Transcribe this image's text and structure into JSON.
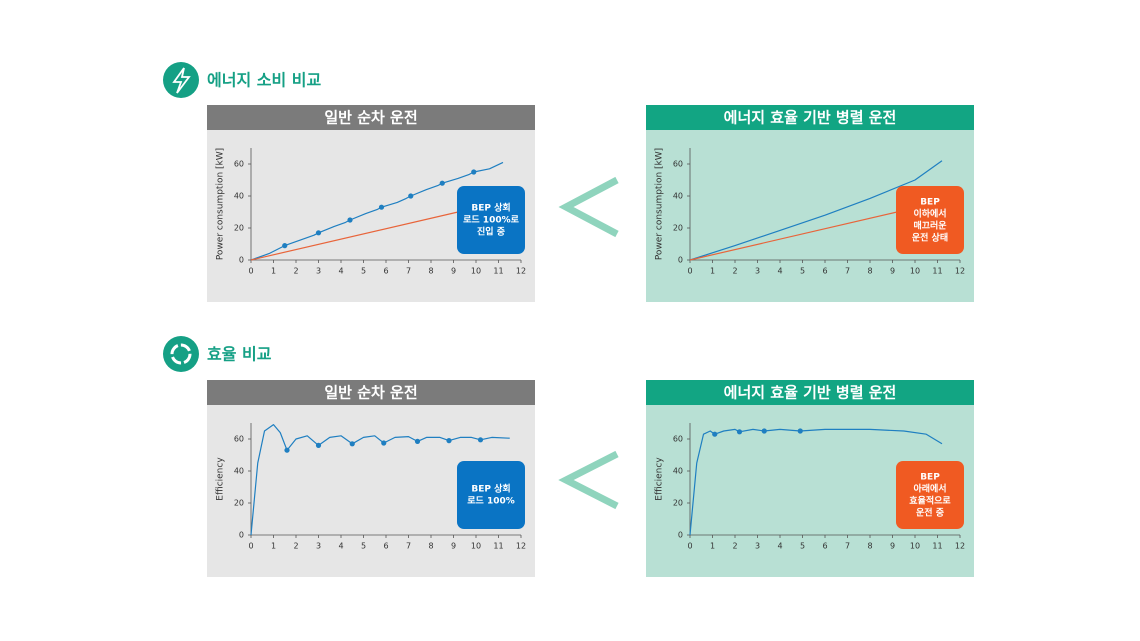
{
  "sections": [
    {
      "heading": "에너지 소비 비교"
    },
    {
      "heading": "효율 비교"
    }
  ],
  "chart_data": [
    {
      "type": "line",
      "title": "일반 순차 운전",
      "ylabel": "Power consumption [kW]",
      "xlim": [
        0,
        12
      ],
      "ylim": [
        0,
        70
      ],
      "xticks": [
        0,
        1,
        2,
        3,
        4,
        5,
        6,
        7,
        8,
        9,
        10,
        11,
        12
      ],
      "yticks": [
        0,
        20,
        40,
        60
      ],
      "series": [
        {
          "color": "#1f7fc1",
          "x": [
            0,
            0.8,
            1.5,
            2.3,
            2.8,
            3,
            3.7,
            4.2,
            4.4,
            5.1,
            5.6,
            5.8,
            6.5,
            6.9,
            7.1,
            7.8,
            8.3,
            8.5,
            9.2,
            9.7,
            9.9,
            10.6,
            11.2
          ],
          "values": [
            0,
            4,
            9,
            13,
            15.5,
            17,
            21,
            23.5,
            25,
            29,
            31.5,
            33,
            36,
            38.5,
            40,
            44,
            46.5,
            48,
            51,
            53.5,
            55,
            57,
            61
          ]
        },
        {
          "color": "#1f7fc1",
          "mode": "markers",
          "x": [
            1.5,
            3,
            4.4,
            5.8,
            7.1,
            8.5,
            9.9
          ],
          "values": [
            9,
            17,
            25,
            33,
            40,
            48,
            55
          ]
        },
        {
          "color": "#e8643a",
          "x": [
            0,
            9.2
          ],
          "values": [
            0,
            30
          ]
        }
      ],
      "annotation": {
        "color": "#0a74c4",
        "lines": [
          "BEP 상회",
          "로드 100%로",
          "진입 중"
        ]
      }
    },
    {
      "type": "line",
      "title": "에너지 효율 기반 병렬 운전",
      "ylabel": "Power consumption [kW]",
      "xlim": [
        0,
        12
      ],
      "ylim": [
        0,
        70
      ],
      "xticks": [
        0,
        1,
        2,
        3,
        4,
        5,
        6,
        7,
        8,
        9,
        10,
        11,
        12
      ],
      "yticks": [
        0,
        20,
        40,
        60
      ],
      "series": [
        {
          "color": "#1f7fc1",
          "x": [
            0,
            2,
            4,
            6,
            8,
            10,
            11.2
          ],
          "values": [
            0,
            9,
            18.5,
            28,
            38.5,
            50,
            62
          ]
        },
        {
          "color": "#e8643a",
          "x": [
            0,
            9.2
          ],
          "values": [
            0,
            30
          ]
        }
      ],
      "annotation": {
        "color": "#f05a22",
        "lines": [
          "BEP",
          "이하에서",
          "매끄러운",
          "운전 상태"
        ]
      }
    },
    {
      "type": "line",
      "title": "일반 순차 운전",
      "ylabel": "Efficiency",
      "xlim": [
        0,
        12
      ],
      "ylim": [
        0,
        70
      ],
      "xticks": [
        0,
        1,
        2,
        3,
        4,
        5,
        6,
        7,
        8,
        9,
        10,
        11,
        12
      ],
      "yticks": [
        0,
        20,
        40,
        60
      ],
      "series": [
        {
          "color": "#1f7fc1",
          "x": [
            0,
            0.3,
            0.6,
            1,
            1.3,
            1.6,
            2,
            2.5,
            3,
            3.5,
            4,
            4.5,
            5,
            5.5,
            5.9,
            6.4,
            7,
            7.4,
            7.8,
            8.4,
            8.8,
            9.3,
            9.8,
            10.2,
            10.7,
            11.5
          ],
          "values": [
            0,
            45,
            65,
            69,
            64,
            53,
            60,
            62,
            56,
            61,
            62,
            57,
            61,
            62,
            57.5,
            61,
            61.5,
            58.5,
            61,
            61,
            59,
            61,
            61,
            59.5,
            61,
            60.5
          ]
        },
        {
          "color": "#1f7fc1",
          "mode": "markers",
          "x": [
            1.6,
            3,
            4.5,
            5.9,
            7.4,
            8.8,
            10.2
          ],
          "values": [
            53,
            56,
            57,
            57.5,
            58.5,
            59,
            59.5
          ]
        }
      ],
      "annotation": {
        "color": "#0a74c4",
        "lines": [
          "BEP 상회",
          "로드 100%"
        ]
      }
    },
    {
      "type": "line",
      "title": "에너지 효율 기반 병렬 운전",
      "ylabel": "Efficiency",
      "xlim": [
        0,
        12
      ],
      "ylim": [
        0,
        70
      ],
      "xticks": [
        0,
        1,
        2,
        3,
        4,
        5,
        6,
        7,
        8,
        9,
        10,
        11,
        12
      ],
      "yticks": [
        0,
        20,
        40,
        60
      ],
      "series": [
        {
          "color": "#1f7fc1",
          "x": [
            0,
            0.3,
            0.6,
            0.9,
            1.1,
            1.5,
            2,
            2.2,
            2.8,
            3.3,
            4,
            4.9,
            6,
            8,
            9.5,
            10.5,
            11.2
          ],
          "values": [
            0,
            45,
            63,
            65,
            63,
            65,
            66,
            64.5,
            66,
            65,
            66,
            65,
            66,
            66,
            65,
            63,
            57
          ]
        },
        {
          "color": "#1f7fc1",
          "mode": "markers",
          "x": [
            1.1,
            2.2,
            3.3,
            4.9
          ],
          "values": [
            63,
            64.5,
            65,
            65
          ]
        }
      ],
      "annotation": {
        "color": "#f05a22",
        "lines": [
          "BEP",
          "아래에서",
          "효율적으로",
          "운전 중"
        ]
      }
    }
  ]
}
